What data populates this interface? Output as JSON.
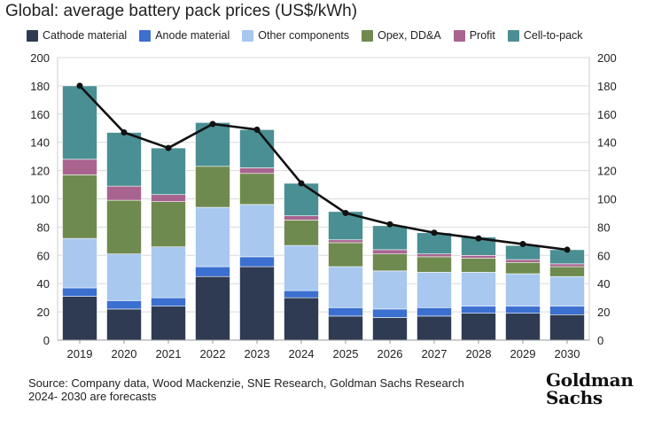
{
  "title": "Global: average battery pack prices (US$/kWh)",
  "source": "Source: Company data, Wood Mackenzie, SNE Research, Goldman Sachs Research",
  "note": "2024- 2030 are forecasts",
  "logo_line1": "Goldman",
  "logo_line2": "Sachs",
  "chart_data": {
    "type": "bar",
    "stacked": true,
    "categories": [
      "2019",
      "2020",
      "2021",
      "2022",
      "2023",
      "2024",
      "2025",
      "2026",
      "2027",
      "2028",
      "2029",
      "2030"
    ],
    "series": [
      {
        "name": "Cathode material",
        "color": "#2e3b52",
        "values": [
          31,
          22,
          24,
          45,
          52,
          30,
          17,
          16,
          17,
          19,
          19,
          18
        ]
      },
      {
        "name": "Anode material",
        "color": "#3b6fd0",
        "values": [
          6,
          6,
          6,
          7,
          7,
          5,
          6,
          6,
          6,
          5,
          5,
          6
        ]
      },
      {
        "name": "Other components",
        "color": "#a8c8f0",
        "values": [
          35,
          33,
          36,
          42,
          37,
          32,
          29,
          27,
          25,
          24,
          23,
          21
        ]
      },
      {
        "name": "Opex, DD&A",
        "color": "#6f8a4e",
        "values": [
          45,
          38,
          32,
          29,
          22,
          18,
          17,
          12,
          11,
          10,
          8,
          7
        ]
      },
      {
        "name": "Profit",
        "color": "#a8648f",
        "values": [
          11,
          10,
          5,
          0,
          4,
          3,
          2,
          3,
          2,
          2,
          2,
          2
        ]
      },
      {
        "name": "Cell-to-pack",
        "color": "#4a8f94",
        "values": [
          52,
          38,
          33,
          31,
          27,
          23,
          20,
          17,
          15,
          13,
          10,
          10
        ]
      }
    ],
    "line": {
      "values": [
        180,
        147,
        136,
        153,
        149,
        111,
        90,
        82,
        76,
        72,
        68,
        64
      ],
      "color": "#111111"
    },
    "ylim": [
      0,
      200
    ],
    "yticks": [
      0,
      20,
      40,
      60,
      80,
      100,
      120,
      140,
      160,
      180,
      200
    ],
    "grid": true,
    "legend_position": "top"
  }
}
